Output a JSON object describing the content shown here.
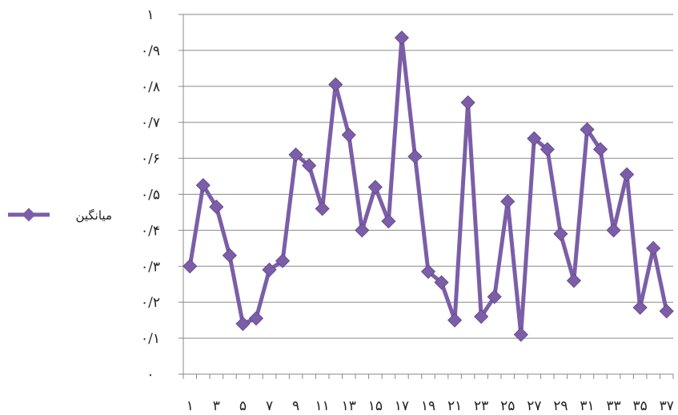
{
  "chart_data": {
    "type": "line",
    "title": "",
    "xlabel": "",
    "ylabel": "",
    "x": [
      1,
      2,
      3,
      4,
      5,
      6,
      7,
      8,
      9,
      10,
      11,
      12,
      13,
      14,
      15,
      16,
      17,
      18,
      19,
      20,
      21,
      22,
      23,
      24,
      25,
      26,
      27,
      28,
      29,
      30,
      31,
      32,
      33,
      34,
      35,
      36,
      37
    ],
    "x_tick_labels": [
      "۱",
      "۳",
      "۵",
      "۷",
      "۹",
      "۱۱",
      "۱۳",
      "۱۵",
      "۱۷",
      "۱۹",
      "۲۱",
      "۲۳",
      "۲۵",
      "۲۷",
      "۲۹",
      "۳۱",
      "۳۳",
      "۳۵",
      "۳۷"
    ],
    "y_tick_labels": [
      "۰",
      "۰/۱",
      "۰/۲",
      "۰/۳",
      "۰/۴",
      "۰/۵",
      "۰/۶",
      "۰/۷",
      "۰/۸",
      "۰/۹",
      "۱"
    ],
    "ylim": [
      0,
      1
    ],
    "y_ticks": [
      0,
      0.1,
      0.2,
      0.3,
      0.4,
      0.5,
      0.6,
      0.7,
      0.8,
      0.9,
      1
    ],
    "grid": "horizontal",
    "legend_position": "left",
    "series": [
      {
        "name": "میانگین",
        "color": "#7b5ea7",
        "marker": "diamond",
        "values": [
          0.3,
          0.525,
          0.465,
          0.33,
          0.14,
          0.155,
          0.29,
          0.315,
          0.61,
          0.58,
          0.46,
          0.805,
          0.665,
          0.4,
          0.52,
          0.425,
          0.935,
          0.605,
          0.285,
          0.255,
          0.15,
          0.755,
          0.16,
          0.215,
          0.48,
          0.11,
          0.655,
          0.625,
          0.39,
          0.26,
          0.68,
          0.625,
          0.4,
          0.555,
          0.185,
          0.35,
          0.175
        ]
      }
    ]
  }
}
